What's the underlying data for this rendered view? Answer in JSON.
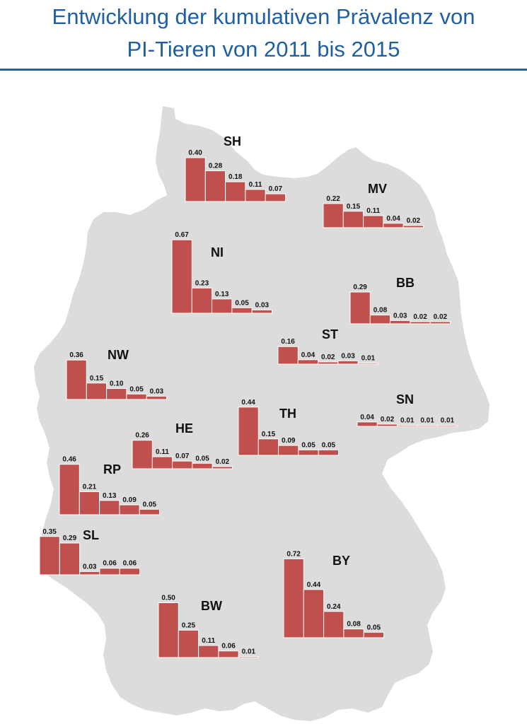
{
  "title": {
    "line1": "Entwicklung der kumulativen Prävalenz von",
    "line2": "PI-Tieren von 2011 bis 2015"
  },
  "colors": {
    "title": "#1f5fa3",
    "bar": "#c0504d",
    "map": "#dcdcdc"
  },
  "chart_data": {
    "type": "bar",
    "value_labels": true,
    "groups": [
      {
        "state": "SH",
        "values": [
          0.4,
          0.28,
          0.18,
          0.11,
          0.07
        ],
        "labels": [
          "0.40",
          "0.28",
          "0.18",
          "0.11",
          "0.07"
        ]
      },
      {
        "state": "MV",
        "values": [
          0.22,
          0.15,
          0.11,
          0.04,
          0.02
        ],
        "labels": [
          "0.22",
          "0.15",
          "0.11",
          "0.04",
          "0.02"
        ]
      },
      {
        "state": "NI",
        "values": [
          0.67,
          0.23,
          0.13,
          0.05,
          0.03
        ],
        "labels": [
          "0.67",
          "0.23",
          "0.13",
          "0.05",
          "0.03"
        ]
      },
      {
        "state": "BB",
        "values": [
          0.29,
          0.08,
          0.03,
          0.02,
          0.02
        ],
        "labels": [
          "0.29",
          "0.08",
          "0.03",
          "0.02",
          "0.02"
        ]
      },
      {
        "state": "ST",
        "values": [
          0.16,
          0.04,
          0.02,
          0.03,
          0.01
        ],
        "labels": [
          "0.16",
          "0.04",
          "0.02",
          "0.03",
          "0.01"
        ]
      },
      {
        "state": "NW",
        "values": [
          0.36,
          0.15,
          0.1,
          0.05,
          0.03
        ],
        "labels": [
          "0.36",
          "0.15",
          "0.10",
          "0.05",
          "0.03"
        ]
      },
      {
        "state": "SN",
        "values": [
          0.04,
          0.02,
          0.01,
          0.01,
          0.01
        ],
        "labels": [
          "0.04",
          "0.02",
          "0.01",
          "0.01",
          "0.01"
        ]
      },
      {
        "state": "TH",
        "values": [
          0.44,
          0.15,
          0.09,
          0.05,
          0.05
        ],
        "labels": [
          "0.44",
          "0.15",
          "0.09",
          "0.05",
          "0.05"
        ]
      },
      {
        "state": "HE",
        "values": [
          0.26,
          0.11,
          0.07,
          0.05,
          0.02
        ],
        "labels": [
          "0.26",
          "0.11",
          "0.07",
          "0.05",
          "0.02"
        ]
      },
      {
        "state": "RP",
        "values": [
          0.46,
          0.21,
          0.13,
          0.09,
          0.05
        ],
        "labels": [
          "0.46",
          "0.21",
          "0.13",
          "0.09",
          "0.05"
        ]
      },
      {
        "state": "SL",
        "values": [
          0.35,
          0.29,
          0.03,
          0.06,
          0.06
        ],
        "labels": [
          "0.35",
          "0.29",
          "0.03",
          "0.06",
          "0.06"
        ]
      },
      {
        "state": "BY",
        "values": [
          0.72,
          0.44,
          0.24,
          0.08,
          0.05
        ],
        "labels": [
          "0.72",
          "0.44",
          "0.24",
          "0.08",
          "0.05"
        ]
      },
      {
        "state": "BW",
        "values": [
          0.5,
          0.25,
          0.11,
          0.06,
          0.01
        ],
        "labels": [
          "0.50",
          "0.25",
          "0.11",
          "0.06",
          "0.01"
        ]
      }
    ]
  }
}
